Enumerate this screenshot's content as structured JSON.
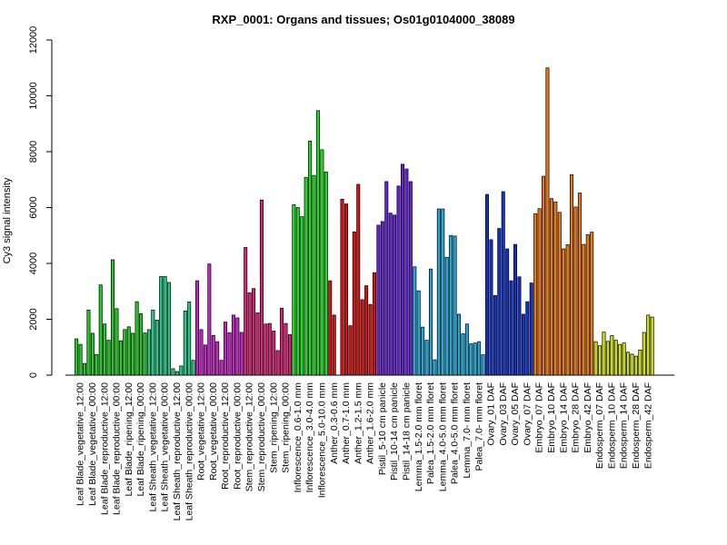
{
  "chart_data": {
    "type": "bar",
    "title": "RXP_0001: Organs and tissues; Os01g0104000_38089",
    "xlabel": "",
    "ylabel": "Cy3 signal intensity",
    "ylim": [
      0,
      12000
    ],
    "yticks": [
      0,
      2000,
      4000,
      6000,
      8000,
      10000,
      12000
    ],
    "grid": false,
    "legend": "none",
    "categories": [
      {
        "label": "Leaf Blade_vegetative_12:00",
        "values": [
          1300,
          1100,
          420
        ],
        "color": "#22cc22"
      },
      {
        "label": "Leaf Blade_vegetative_00:00",
        "values": [
          2330,
          1500,
          740
        ],
        "color": "#22cc22"
      },
      {
        "label": "Leaf Blade_reproductive_12:00",
        "values": [
          3230,
          1830,
          1250
        ],
        "color": "#22cc22"
      },
      {
        "label": "Leaf Blade_reproductive_00:00",
        "values": [
          4130,
          2380,
          1230
        ],
        "color": "#22cc22"
      },
      {
        "label": "Leaf Blade_ripening_12:00",
        "values": [
          1630,
          1730,
          1500
        ],
        "color": "#22cc22"
      },
      {
        "label": "Leaf Blade_ripening_00:00",
        "values": [
          2630,
          2200,
          1510
        ],
        "color": "#22cc22"
      },
      {
        "label": "Leaf Sheath_vegetative_12:00",
        "values": [
          1630,
          2330,
          1970
        ],
        "color": "#22cc88"
      },
      {
        "label": "Leaf Sheath_vegetative_00:00",
        "values": [
          3530,
          3530,
          3320
        ],
        "color": "#22cc88"
      },
      {
        "label": "Leaf Sheath_reproductive_12:00",
        "values": [
          230,
          130,
          330
        ],
        "color": "#22cc88"
      },
      {
        "label": "Leaf Sheath_reproductive_00:00",
        "values": [
          2300,
          2620,
          530
        ],
        "color": "#22cc88"
      },
      {
        "label": "Root_vegetative_12:00",
        "values": [
          3380,
          1630,
          1080
        ],
        "color": "#cc22cc"
      },
      {
        "label": "Root_vegetative_00:00",
        "values": [
          3980,
          1420,
          1200
        ],
        "color": "#cc22cc"
      },
      {
        "label": "Root_reproductive_12:00",
        "values": [
          530,
          1900,
          1520
        ],
        "color": "#cc22cc"
      },
      {
        "label": "Root_reproductive_00:00",
        "values": [
          2150,
          2050,
          1530
        ],
        "color": "#cc22cc"
      },
      {
        "label": "Stem_reproductive_12:00",
        "values": [
          4570,
          2950,
          3100
        ],
        "color": "#dd2277"
      },
      {
        "label": "Stem_reproductive_00:00",
        "values": [
          2230,
          6270,
          1830
        ],
        "color": "#dd2277"
      },
      {
        "label": "Stem_ripening_12:00",
        "values": [
          1850,
          1580,
          880
        ],
        "color": "#dd2277"
      },
      {
        "label": "Stem_ripening_00:00",
        "values": [
          2400,
          1850,
          1450
        ],
        "color": "#dd2277"
      },
      {
        "label": "Inflorescence_0.6-1.0 mm",
        "values": [
          6100,
          6000,
          5670
        ],
        "color": "#22dd22"
      },
      {
        "label": "Inflorescence_3.0-4.0 mm",
        "values": [
          7080,
          8380,
          7150
        ],
        "color": "#22dd22"
      },
      {
        "label": "Inflorescence_5.0-10.0 mm",
        "values": [
          9470,
          8070,
          7270
        ],
        "color": "#22dd22"
      },
      {
        "label": "Anther_0.3-0.6 mm",
        "values": [
          3380,
          2150
        ],
        "color": "#dd1111"
      },
      {
        "label": "Anther_0.7-1.0 mm",
        "values": [
          6300,
          6130,
          1770
        ],
        "color": "#dd1111"
      },
      {
        "label": "Anther_1.2-1.5 mm",
        "values": [
          5130,
          6830,
          2700
        ],
        "color": "#dd1111"
      },
      {
        "label": "Anther_1.6-2.0 mm",
        "values": [
          3200,
          2530,
          3670
        ],
        "color": "#dd1111"
      },
      {
        "label": "Pistil_5-10 cm panicle",
        "values": [
          5370,
          5500,
          6930
        ],
        "color": "#6622dd"
      },
      {
        "label": "Pistil_10-14 cm panicle",
        "values": [
          5800,
          5730,
          6770
        ],
        "color": "#6622dd"
      },
      {
        "label": "Pistil_14-18 cm panicle",
        "values": [
          7550,
          7380,
          6930
        ],
        "color": "#6622dd"
      },
      {
        "label": "Lemma_1.5-2.0 mm floret",
        "values": [
          3880,
          3020,
          1720
        ],
        "color": "#22aadd"
      },
      {
        "label": "Palea_1.5-2.0 mm floret",
        "values": [
          1250,
          3800,
          550
        ],
        "color": "#22aadd"
      },
      {
        "label": "Lemma_4.0-5.0 mm floret",
        "values": [
          5950,
          5950,
          4220
        ],
        "color": "#22aadd"
      },
      {
        "label": "Palea_4.0-5.0 mm floret",
        "values": [
          5000,
          4980,
          2180
        ],
        "color": "#22aadd"
      },
      {
        "label": "Lemma_7.0- mm floret",
        "values": [
          1480,
          1830,
          1120
        ],
        "color": "#22aadd"
      },
      {
        "label": "Palea_7.0- mm floret",
        "values": [
          1150,
          1200,
          730
        ],
        "color": "#22aadd"
      },
      {
        "label": "Ovary_01 DAF",
        "values": [
          6470,
          4850,
          2850
        ],
        "color": "#1133cc"
      },
      {
        "label": "Ovary_03 DAF",
        "values": [
          5250,
          6570,
          4520
        ],
        "color": "#1133cc"
      },
      {
        "label": "Ovary_05 DAF",
        "values": [
          3380,
          4680,
          3520
        ],
        "color": "#1133cc"
      },
      {
        "label": "Ovary_07 DAF",
        "values": [
          2180,
          2630,
          3300
        ],
        "color": "#1133cc"
      },
      {
        "label": "Embryo_07 DAF",
        "values": [
          5780,
          5960,
          7120
        ],
        "color": "#ee7711"
      },
      {
        "label": "Embryo_10 DAF",
        "values": [
          11000,
          6320,
          6200
        ],
        "color": "#ee7711"
      },
      {
        "label": "Embryo_14 DAF",
        "values": [
          5830,
          4520,
          4670
        ],
        "color": "#ee7711"
      },
      {
        "label": "Embryo_28 DAF",
        "values": [
          7180,
          6020,
          6520
        ],
        "color": "#ee7711"
      },
      {
        "label": "Embryo_42 DAF",
        "values": [
          4680,
          5030,
          5120
        ],
        "color": "#ee7711"
      },
      {
        "label": "Endosperm_07 DAF",
        "values": [
          1200,
          1050,
          1540
        ],
        "color": "#ccdd22"
      },
      {
        "label": "Endosperm_10 DAF",
        "values": [
          1210,
          1420,
          1250
        ],
        "color": "#ccdd22"
      },
      {
        "label": "Endosperm_14 DAF",
        "values": [
          1100,
          1150,
          820
        ],
        "color": "#ccdd22"
      },
      {
        "label": "Endosperm_28 DAF",
        "values": [
          750,
          680,
          900
        ],
        "color": "#ccdd22"
      },
      {
        "label": "Endosperm_42 DAF",
        "values": [
          1530,
          2150,
          2080
        ],
        "color": "#ccdd22"
      }
    ]
  }
}
